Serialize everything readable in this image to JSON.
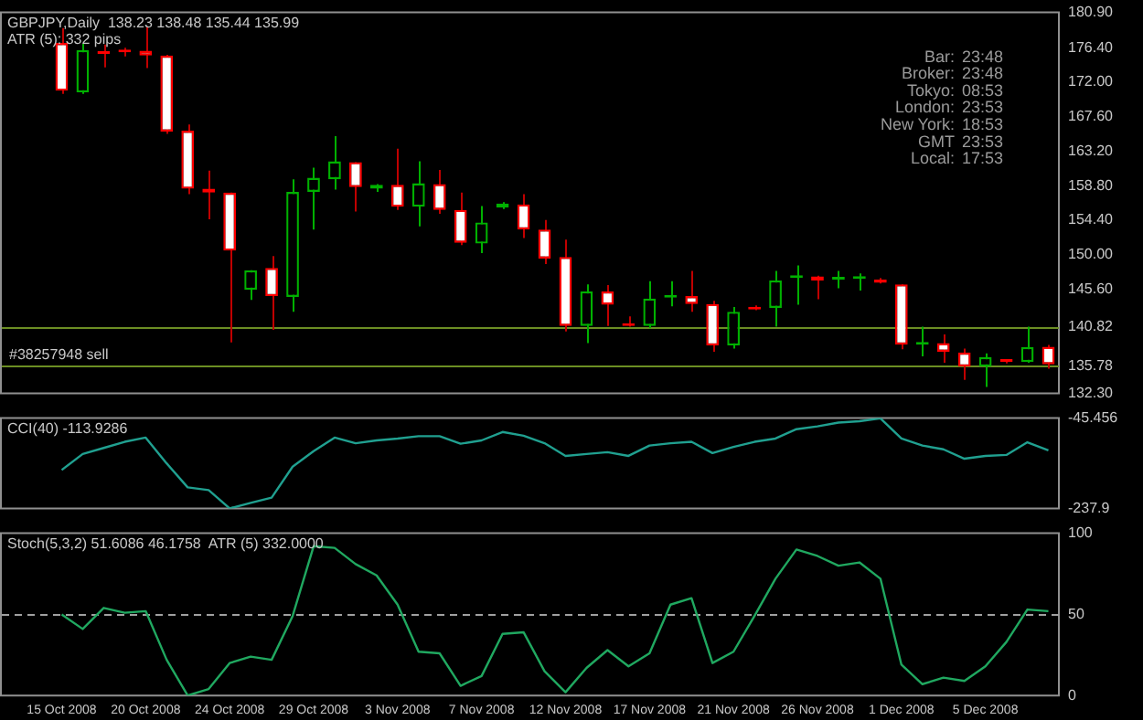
{
  "chart_data": [
    {
      "type": "candlestick",
      "title": "GBPJPY,Daily  138.23 138.48 135.44 135.99",
      "annotations": [
        "ATR (5): 332 pips",
        "Bar: 23:48",
        "Broker: 23:48",
        "Tokyo: 08:53",
        "London: 23:53",
        "New York: 18:53",
        "GMT 23:53",
        "Local: 17:53"
      ],
      "ohlc": [
        [
          177.0,
          178.9,
          170.5,
          170.9
        ],
        [
          170.7,
          176.9,
          170.5,
          176.1
        ],
        [
          175.9,
          176.8,
          173.9,
          175.6
        ],
        [
          175.9,
          176.4,
          175.3,
          175.8
        ],
        [
          176.0,
          179.1,
          173.8,
          175.4
        ],
        [
          175.4,
          175.5,
          165.4,
          165.7
        ],
        [
          165.8,
          166.6,
          157.7,
          158.4
        ],
        [
          158.4,
          160.7,
          154.5,
          157.9
        ],
        [
          157.9,
          157.9,
          138.8,
          150.5
        ],
        [
          145.5,
          148.0,
          144.2,
          148.0
        ],
        [
          148.3,
          149.8,
          140.4,
          144.7
        ],
        [
          144.6,
          159.6,
          142.7,
          158.0
        ],
        [
          158.0,
          161.1,
          153.2,
          159.8
        ],
        [
          159.6,
          165.1,
          158.3,
          161.9
        ],
        [
          161.8,
          161.8,
          155.5,
          158.6
        ],
        [
          158.4,
          159.0,
          158.0,
          158.9
        ],
        [
          158.9,
          163.5,
          155.7,
          156.1
        ],
        [
          156.1,
          161.9,
          153.6,
          159.1
        ],
        [
          159.0,
          160.8,
          155.2,
          155.7
        ],
        [
          155.7,
          157.9,
          151.2,
          151.5
        ],
        [
          151.4,
          156.2,
          150.2,
          154.1
        ],
        [
          156.0,
          156.7,
          155.8,
          156.5
        ],
        [
          156.4,
          157.7,
          152.1,
          153.2
        ],
        [
          153.2,
          154.4,
          148.8,
          149.5
        ],
        [
          149.7,
          151.9,
          140.2,
          140.9
        ],
        [
          140.9,
          146.2,
          138.7,
          145.3
        ],
        [
          145.3,
          146.1,
          140.9,
          143.6
        ],
        [
          141.0,
          142.1,
          140.8,
          140.9
        ],
        [
          140.9,
          146.6,
          140.6,
          144.4
        ],
        [
          144.5,
          146.6,
          143.4,
          144.7
        ],
        [
          144.7,
          147.9,
          142.7,
          143.7
        ],
        [
          143.7,
          144.1,
          137.6,
          138.4
        ],
        [
          138.4,
          143.3,
          138.0,
          142.7
        ],
        [
          143.3,
          143.5,
          142.9,
          143.0
        ],
        [
          143.2,
          147.9,
          140.8,
          146.7
        ],
        [
          147.0,
          148.6,
          143.6,
          147.2
        ],
        [
          147.2,
          147.3,
          144.3,
          146.7
        ],
        [
          146.8,
          147.9,
          145.7,
          146.9
        ],
        [
          146.9,
          147.6,
          145.4,
          147.0
        ],
        [
          146.8,
          147.0,
          146.3,
          146.4
        ],
        [
          146.2,
          146.2,
          137.9,
          138.5
        ],
        [
          138.5,
          140.8,
          137.0,
          138.8
        ],
        [
          138.7,
          139.8,
          136.2,
          137.6
        ],
        [
          137.5,
          138.0,
          134.0,
          135.7
        ],
        [
          135.7,
          137.4,
          133.1,
          136.9
        ],
        [
          136.4,
          136.5,
          136.1,
          136.3
        ],
        [
          136.3,
          140.8,
          136.2,
          138.2
        ],
        [
          138.23,
          138.48,
          135.44,
          135.99
        ]
      ],
      "ylim": [
        132.3,
        180.9
      ],
      "yticks": [
        {
          "value": 132.3,
          "label": "132.30"
        },
        {
          "value": 135.78,
          "label": "135.78"
        },
        {
          "value": 140.82,
          "label": "140.82"
        },
        {
          "value": 145.6,
          "label": "145.60"
        },
        {
          "value": 150,
          "label": "150.00"
        },
        {
          "value": 154.4,
          "label": "154.40"
        },
        {
          "value": 158.8,
          "label": "158.80"
        },
        {
          "value": 163.2,
          "label": "163.20"
        },
        {
          "value": 167.6,
          "label": "167.60"
        },
        {
          "value": 172,
          "label": "172.00"
        },
        {
          "value": 176.4,
          "label": "176.40"
        },
        {
          "value": 180.9,
          "label": "180.90"
        }
      ],
      "ref_lines": [
        {
          "axis": "y",
          "value": 140.82,
          "label": null,
          "color": "#6b8e23"
        },
        {
          "axis": "y",
          "value": 135.78,
          "label": "#38257948 sell",
          "color": "#6b8e23"
        }
      ],
      "tick_labels": "y"
    },
    {
      "type": "line",
      "title": "CCI(40) -113.9286",
      "series": [
        {
          "color": "#20a090",
          "values": [
            -156,
            -122,
            -109,
            -96,
            -87,
            -142,
            -193,
            -199,
            -237.9,
            -226,
            -215,
            -149,
            -116,
            -87,
            -99,
            -93,
            -89,
            -84,
            -84,
            -100,
            -93,
            -75,
            -83,
            -99,
            -126,
            -122,
            -118,
            -126,
            -104,
            -99,
            -96,
            -120,
            -107,
            -96,
            -89,
            -69,
            -63,
            -55,
            -52,
            -46,
            -89,
            -104,
            -112,
            -132,
            -126,
            -124,
            -97,
            -114
          ]
        }
      ],
      "ylim": [
        -237.9,
        -45.456
      ],
      "yticks": [
        {
          "value": -237.9,
          "label": "-237.9"
        },
        {
          "value": -45.456,
          "label": "-45.456"
        }
      ],
      "tick_labels": "y"
    },
    {
      "type": "line",
      "title": "Stoch(5,3,2) 51.6086 46.1758  ATR (5) 332.0000",
      "categories": [
        "15 Oct 2008",
        null,
        null,
        null,
        "20 Oct 2008",
        null,
        null,
        null,
        "24 Oct 2008",
        null,
        null,
        null,
        "29 Oct 2008",
        null,
        null,
        null,
        "3 Nov 2008",
        null,
        null,
        null,
        "7 Nov 2008",
        null,
        null,
        null,
        "12 Nov 2008",
        null,
        null,
        null,
        "17 Nov 2008",
        null,
        null,
        null,
        "21 Nov 2008",
        null,
        null,
        null,
        "26 Nov 2008",
        null,
        null,
        null,
        "1 Dec 2008",
        null,
        null,
        null,
        "5 Dec 2008",
        null,
        null,
        null
      ],
      "series": [
        {
          "color": "#20a860",
          "values": [
            50,
            41,
            54,
            51,
            52,
            22,
            0,
            4,
            20,
            24,
            22,
            49,
            92,
            91,
            81,
            74,
            56,
            27,
            26,
            6,
            12,
            38,
            39,
            15,
            2,
            17,
            28,
            18,
            26,
            56,
            60,
            20,
            27,
            49,
            72,
            90,
            86,
            80,
            82,
            72,
            19,
            7,
            11,
            9,
            18,
            33,
            53,
            52
          ]
        }
      ],
      "ylim": [
        0,
        100
      ],
      "yticks": [
        0,
        50,
        100
      ],
      "ref_lines": [
        {
          "axis": "y",
          "value": 50,
          "label": null,
          "color": "#a0a0a0",
          "line_style": "dashed"
        }
      ]
    }
  ]
}
